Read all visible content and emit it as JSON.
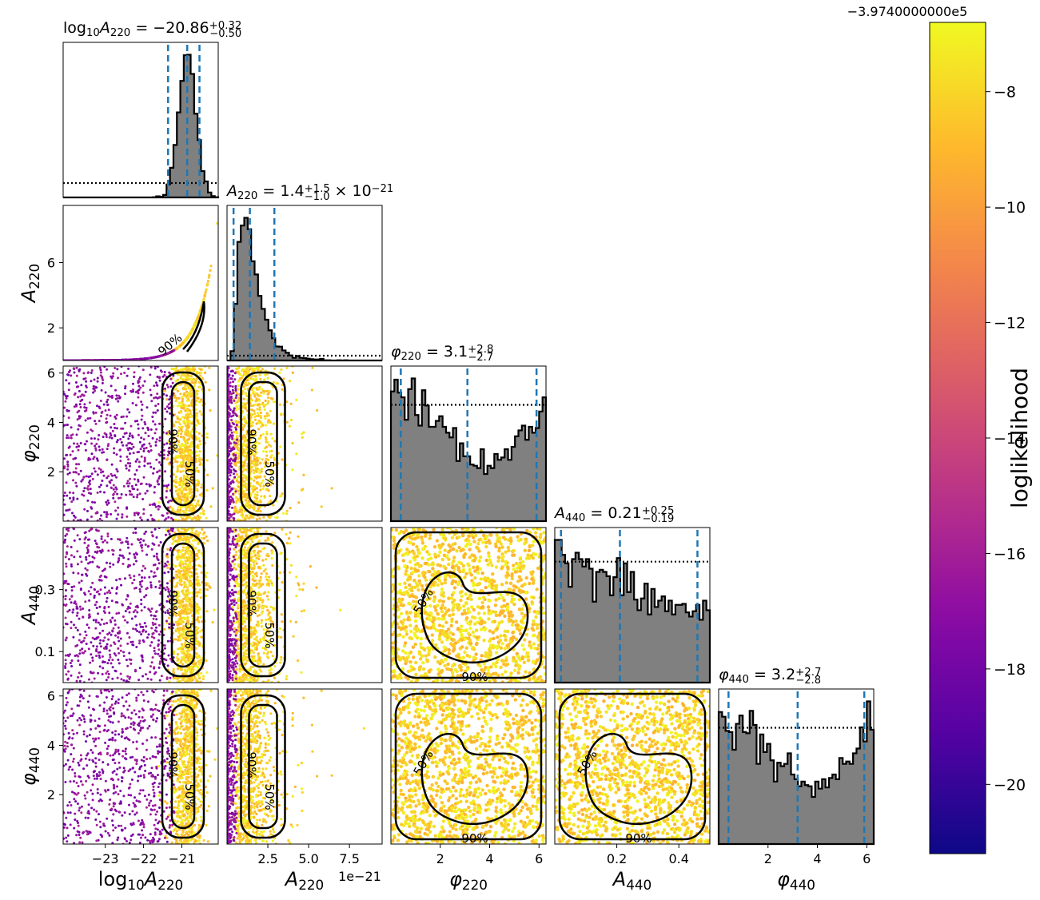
{
  "chart_data": {
    "type": "corner",
    "parameters": [
      {
        "key": "log10A220",
        "axis_label": "log10A220",
        "title": "log10A220 = −20.86",
        "title_sup": "+0.32",
        "title_sub": "−0.50",
        "median": -20.86,
        "plus": 0.32,
        "minus": 0.5,
        "range": [
          -24.1,
          -20.05
        ],
        "ticks": [
          -23,
          -22,
          -21
        ],
        "tick_labels": [
          "−23",
          "−22",
          "−21"
        ]
      },
      {
        "key": "A220",
        "axis_label": "A220",
        "title": "A220 = 1.4",
        "title_sup": "+1.5",
        "title_sub": "−1.0",
        "title_suffix": "× 10−21",
        "median": 1.4,
        "plus": 1.5,
        "minus": 1.0,
        "range": [
          0,
          9.5
        ],
        "ticks": [
          2.5,
          5.0,
          7.5
        ],
        "tick_labels": [
          "2.5",
          "5.0",
          "7.5"
        ],
        "y_ticks": [
          2,
          6
        ],
        "y_tick_labels": [
          "2",
          "6"
        ],
        "offset_label": "1e−21"
      },
      {
        "key": "phi220",
        "axis_label": "φ220",
        "title": "φ220 = 3.1",
        "title_sup": "+2.8",
        "title_sub": "−2.7",
        "median": 3.1,
        "plus": 2.8,
        "minus": 2.7,
        "range": [
          0,
          6.283
        ],
        "ticks": [
          2,
          4,
          6
        ],
        "tick_labels": [
          "2",
          "4",
          "6"
        ]
      },
      {
        "key": "A440",
        "axis_label": "A440",
        "title": "A440 = 0.21",
        "title_sup": "+0.25",
        "title_sub": "−0.19",
        "median": 0.21,
        "plus": 0.25,
        "minus": 0.19,
        "range": [
          0,
          0.5
        ],
        "ticks": [
          0.2,
          0.4
        ],
        "tick_labels": [
          "0.2",
          "0.4"
        ],
        "y_ticks": [
          0.1,
          0.3
        ],
        "y_tick_labels": [
          "0.1",
          "0.3"
        ]
      },
      {
        "key": "phi440",
        "axis_label": "φ440",
        "title": "φ440 = 3.2",
        "title_sup": "+2.7",
        "title_sub": "−2.8",
        "median": 3.2,
        "plus": 2.7,
        "minus": 2.8,
        "range": [
          0,
          6.283
        ],
        "ticks": [
          2,
          4,
          6
        ],
        "tick_labels": [
          "2",
          "4",
          "6"
        ]
      }
    ],
    "contour_labels": [
      "50%",
      "90%"
    ],
    "colorbar": {
      "label": "loglikelihood",
      "offset_label": "−3.9740000000e5",
      "range": [
        -21.2,
        -6.8
      ],
      "ticks": [
        -20,
        -18,
        -16,
        -14,
        -12,
        -10,
        -8
      ],
      "tick_labels": [
        "−20",
        "−18",
        "−16",
        "−14",
        "−12",
        "−10",
        "−8"
      ],
      "colormap": "plasma"
    },
    "colors": {
      "histogram_fill": "#808080",
      "quantile_lines": "#1f77b4",
      "contours": "#000000",
      "prior_line": "#000000"
    }
  }
}
